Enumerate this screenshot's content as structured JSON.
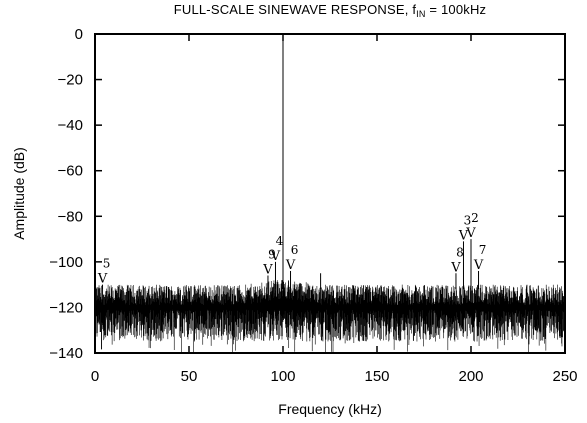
{
  "title": {
    "main": "FULL-SCALE SINEWAVE RESPONSE, f",
    "sub": "IN",
    "suffix": " = 100kHz"
  },
  "chart_data": {
    "type": "line",
    "xlabel": "Frequency (kHz)",
    "ylabel": "Amplitude (dB)",
    "xlim": [
      0,
      250
    ],
    "ylim": [
      -140,
      0
    ],
    "xticks": [
      0,
      50,
      100,
      150,
      200,
      250
    ],
    "yticks": [
      0,
      -20,
      -40,
      -60,
      -80,
      -100,
      -120,
      -140
    ],
    "grid": false,
    "series": [
      {
        "fundamental": {
          "x": 100,
          "y": 0
        },
        "noise_floor_db": -118,
        "noise_floor_min_db": -140,
        "noise_peak_db": -108
      }
    ],
    "harmonics": [
      {
        "label": "2",
        "x": 200,
        "y": -90
      },
      {
        "label": "3",
        "x": 196,
        "y": -91
      },
      {
        "label": "4",
        "x": 96,
        "y": -100
      },
      {
        "label": "5",
        "x": 4,
        "y": -110
      },
      {
        "label": "6",
        "x": 104,
        "y": -104
      },
      {
        "label": "7",
        "x": 204,
        "y": -104
      },
      {
        "label": "8",
        "x": 192,
        "y": -105
      },
      {
        "label": "9",
        "x": 92,
        "y": -106
      }
    ],
    "marker_glyph": "V",
    "extra_spurs": [
      {
        "x": 120,
        "y": -105
      },
      {
        "x": 200,
        "y": -103
      }
    ]
  }
}
